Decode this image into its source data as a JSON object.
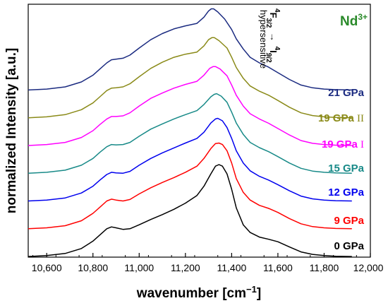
{
  "chart_data": {
    "type": "line",
    "title": "",
    "xlabel": "wavenumber [cm−1]",
    "xlabel_main": "wavenumber [cm",
    "xlabel_sup": "−1",
    "xlabel_close": "]",
    "ylabel": "normalized Intensity [a.u.]",
    "xlim": [
      10520,
      12000
    ],
    "x_ticks": [
      10600,
      10800,
      11000,
      11200,
      11400,
      11600,
      11800,
      12000
    ],
    "x_tick_labels": [
      "10,600",
      "10,800",
      "11,000",
      "11,200",
      "11,400",
      "11,600",
      "11,800",
      "12,000"
    ],
    "ylim": [
      0,
      8.2
    ],
    "y_ticks_labeled": false,
    "grid": false,
    "stacked_offset": 0.9,
    "annotations": {
      "ion": {
        "base": "Nd",
        "sup": "3+",
        "color": "#2a8a2a"
      },
      "transition": {
        "initial": "F",
        "initial_sup": "4",
        "initial_sub": "3/2",
        "arrow": "→",
        "final": "I",
        "final_sup": "4",
        "final_sub": "9/2"
      },
      "hypersensitive": "hypersensitive"
    },
    "series": [
      {
        "name": "0 GPa",
        "color": "#000000",
        "offset": 0,
        "points": [
          [
            10520,
            0.02
          ],
          [
            10600,
            0.05
          ],
          [
            10680,
            0.12
          ],
          [
            10750,
            0.28
          ],
          [
            10800,
            0.52
          ],
          [
            10830,
            0.72
          ],
          [
            10860,
            0.92
          ],
          [
            10880,
            0.98
          ],
          [
            10900,
            0.95
          ],
          [
            10930,
            0.9
          ],
          [
            10960,
            0.92
          ],
          [
            11000,
            1.05
          ],
          [
            11050,
            1.22
          ],
          [
            11100,
            1.38
          ],
          [
            11150,
            1.55
          ],
          [
            11200,
            1.75
          ],
          [
            11250,
            2.0
          ],
          [
            11280,
            2.3
          ],
          [
            11310,
            2.7
          ],
          [
            11330,
            2.95
          ],
          [
            11345,
            3.0
          ],
          [
            11360,
            2.95
          ],
          [
            11380,
            2.7
          ],
          [
            11400,
            2.2
          ],
          [
            11420,
            1.6
          ],
          [
            11450,
            1.05
          ],
          [
            11480,
            0.8
          ],
          [
            11520,
            0.65
          ],
          [
            11560,
            0.58
          ],
          [
            11600,
            0.5
          ],
          [
            11650,
            0.33
          ],
          [
            11700,
            0.17
          ],
          [
            11750,
            0.09
          ],
          [
            11800,
            0.05
          ],
          [
            11850,
            0.03
          ],
          [
            11920,
            0.02
          ]
        ]
      },
      {
        "name": "9 GPa",
        "color": "#ff0000",
        "offset": 0.9,
        "points": [
          [
            10520,
            0.02
          ],
          [
            10600,
            0.05
          ],
          [
            10680,
            0.12
          ],
          [
            10750,
            0.28
          ],
          [
            10800,
            0.52
          ],
          [
            10830,
            0.72
          ],
          [
            10860,
            0.92
          ],
          [
            10880,
            0.98
          ],
          [
            10900,
            0.95
          ],
          [
            10930,
            0.92
          ],
          [
            10960,
            0.97
          ],
          [
            11000,
            1.15
          ],
          [
            11050,
            1.35
          ],
          [
            11100,
            1.52
          ],
          [
            11150,
            1.68
          ],
          [
            11200,
            1.85
          ],
          [
            11250,
            2.05
          ],
          [
            11280,
            2.3
          ],
          [
            11310,
            2.62
          ],
          [
            11330,
            2.78
          ],
          [
            11345,
            2.8
          ],
          [
            11360,
            2.75
          ],
          [
            11380,
            2.55
          ],
          [
            11400,
            2.15
          ],
          [
            11420,
            1.65
          ],
          [
            11450,
            1.2
          ],
          [
            11480,
            0.95
          ],
          [
            11520,
            0.78
          ],
          [
            11560,
            0.68
          ],
          [
            11600,
            0.55
          ],
          [
            11650,
            0.35
          ],
          [
            11700,
            0.18
          ],
          [
            11750,
            0.09
          ],
          [
            11800,
            0.05
          ],
          [
            11850,
            0.03
          ],
          [
            11920,
            0.02
          ]
        ]
      },
      {
        "name": "12 GPa",
        "color": "#0000ee",
        "offset": 1.8,
        "points": [
          [
            10520,
            0.02
          ],
          [
            10600,
            0.05
          ],
          [
            10680,
            0.12
          ],
          [
            10750,
            0.28
          ],
          [
            10800,
            0.5
          ],
          [
            10830,
            0.7
          ],
          [
            10860,
            0.88
          ],
          [
            10880,
            0.95
          ],
          [
            10900,
            0.93
          ],
          [
            10930,
            0.92
          ],
          [
            10960,
            0.98
          ],
          [
            11000,
            1.18
          ],
          [
            11050,
            1.4
          ],
          [
            11100,
            1.58
          ],
          [
            11150,
            1.74
          ],
          [
            11200,
            1.9
          ],
          [
            11250,
            2.05
          ],
          [
            11280,
            2.25
          ],
          [
            11310,
            2.55
          ],
          [
            11330,
            2.68
          ],
          [
            11340,
            2.7
          ],
          [
            11360,
            2.62
          ],
          [
            11380,
            2.4
          ],
          [
            11400,
            2.05
          ],
          [
            11420,
            1.65
          ],
          [
            11450,
            1.25
          ],
          [
            11480,
            1.0
          ],
          [
            11520,
            0.82
          ],
          [
            11560,
            0.7
          ],
          [
            11600,
            0.55
          ],
          [
            11650,
            0.35
          ],
          [
            11700,
            0.18
          ],
          [
            11750,
            0.09
          ],
          [
            11800,
            0.05
          ],
          [
            11850,
            0.03
          ],
          [
            11920,
            0.02
          ]
        ]
      },
      {
        "name": "15 GPa",
        "color": "#188a88",
        "offset": 2.7,
        "points": [
          [
            10520,
            0.02
          ],
          [
            10600,
            0.05
          ],
          [
            10680,
            0.12
          ],
          [
            10750,
            0.28
          ],
          [
            10800,
            0.5
          ],
          [
            10830,
            0.7
          ],
          [
            10860,
            0.88
          ],
          [
            10880,
            0.95
          ],
          [
            10900,
            0.94
          ],
          [
            10930,
            0.95
          ],
          [
            10960,
            1.02
          ],
          [
            11000,
            1.22
          ],
          [
            11050,
            1.45
          ],
          [
            11100,
            1.62
          ],
          [
            11150,
            1.78
          ],
          [
            11200,
            1.92
          ],
          [
            11250,
            2.05
          ],
          [
            11280,
            2.25
          ],
          [
            11310,
            2.5
          ],
          [
            11325,
            2.58
          ],
          [
            11335,
            2.6
          ],
          [
            11355,
            2.52
          ],
          [
            11380,
            2.32
          ],
          [
            11400,
            2.0
          ],
          [
            11420,
            1.65
          ],
          [
            11450,
            1.28
          ],
          [
            11480,
            1.02
          ],
          [
            11520,
            0.85
          ],
          [
            11560,
            0.72
          ],
          [
            11600,
            0.56
          ],
          [
            11650,
            0.35
          ],
          [
            11700,
            0.18
          ],
          [
            11750,
            0.09
          ],
          [
            11800,
            0.05
          ],
          [
            11850,
            0.03
          ],
          [
            11920,
            0.02
          ]
        ]
      },
      {
        "name": "19 GPa I",
        "color": "#ff00ff",
        "offset": 3.6,
        "points": [
          [
            10520,
            0.02
          ],
          [
            10600,
            0.05
          ],
          [
            10680,
            0.12
          ],
          [
            10750,
            0.28
          ],
          [
            10800,
            0.5
          ],
          [
            10830,
            0.7
          ],
          [
            10860,
            0.88
          ],
          [
            10880,
            0.96
          ],
          [
            10900,
            0.96
          ],
          [
            10930,
            0.98
          ],
          [
            10960,
            1.08
          ],
          [
            11000,
            1.3
          ],
          [
            11050,
            1.55
          ],
          [
            11100,
            1.72
          ],
          [
            11150,
            1.88
          ],
          [
            11200,
            2.0
          ],
          [
            11250,
            2.1
          ],
          [
            11280,
            2.3
          ],
          [
            11305,
            2.52
          ],
          [
            11320,
            2.58
          ],
          [
            11330,
            2.58
          ],
          [
            11350,
            2.5
          ],
          [
            11380,
            2.28
          ],
          [
            11400,
            1.98
          ],
          [
            11420,
            1.65
          ],
          [
            11450,
            1.3
          ],
          [
            11480,
            1.05
          ],
          [
            11520,
            0.88
          ],
          [
            11560,
            0.74
          ],
          [
            11600,
            0.57
          ],
          [
            11650,
            0.36
          ],
          [
            11700,
            0.18
          ],
          [
            11750,
            0.09
          ],
          [
            11800,
            0.05
          ],
          [
            11850,
            0.03
          ],
          [
            11920,
            0.02
          ]
        ]
      },
      {
        "name": "19 GPa II",
        "color": "#8a8a18",
        "offset": 4.5,
        "points": [
          [
            10520,
            0.02
          ],
          [
            10600,
            0.05
          ],
          [
            10680,
            0.12
          ],
          [
            10750,
            0.28
          ],
          [
            10800,
            0.5
          ],
          [
            10830,
            0.7
          ],
          [
            10860,
            0.9
          ],
          [
            10880,
            0.98
          ],
          [
            10900,
            0.99
          ],
          [
            10930,
            1.02
          ],
          [
            10960,
            1.12
          ],
          [
            11000,
            1.35
          ],
          [
            11050,
            1.62
          ],
          [
            11100,
            1.82
          ],
          [
            11150,
            1.98
          ],
          [
            11200,
            2.08
          ],
          [
            11250,
            2.15
          ],
          [
            11280,
            2.35
          ],
          [
            11300,
            2.55
          ],
          [
            11315,
            2.62
          ],
          [
            11325,
            2.62
          ],
          [
            11345,
            2.52
          ],
          [
            11380,
            2.28
          ],
          [
            11400,
            1.98
          ],
          [
            11420,
            1.65
          ],
          [
            11450,
            1.3
          ],
          [
            11480,
            1.05
          ],
          [
            11520,
            0.88
          ],
          [
            11560,
            0.75
          ],
          [
            11600,
            0.58
          ],
          [
            11650,
            0.36
          ],
          [
            11700,
            0.18
          ],
          [
            11750,
            0.09
          ],
          [
            11800,
            0.05
          ],
          [
            11850,
            0.03
          ],
          [
            11920,
            0.02
          ]
        ]
      },
      {
        "name": "21 GPa",
        "color": "#1a2a80",
        "offset": 5.4,
        "points": [
          [
            10520,
            0.02
          ],
          [
            10600,
            0.05
          ],
          [
            10680,
            0.12
          ],
          [
            10750,
            0.28
          ],
          [
            10800,
            0.5
          ],
          [
            10830,
            0.7
          ],
          [
            10860,
            0.9
          ],
          [
            10880,
            1.0
          ],
          [
            10900,
            1.02
          ],
          [
            10930,
            1.05
          ],
          [
            10960,
            1.15
          ],
          [
            11000,
            1.38
          ],
          [
            11050,
            1.65
          ],
          [
            11100,
            1.85
          ],
          [
            11150,
            2.0
          ],
          [
            11200,
            2.1
          ],
          [
            11250,
            2.18
          ],
          [
            11280,
            2.38
          ],
          [
            11300,
            2.58
          ],
          [
            11312,
            2.65
          ],
          [
            11322,
            2.65
          ],
          [
            11340,
            2.55
          ],
          [
            11370,
            2.32
          ],
          [
            11400,
            1.98
          ],
          [
            11420,
            1.68
          ],
          [
            11450,
            1.35
          ],
          [
            11480,
            1.08
          ],
          [
            11520,
            0.9
          ],
          [
            11560,
            0.76
          ],
          [
            11600,
            0.58
          ],
          [
            11650,
            0.36
          ],
          [
            11700,
            0.18
          ],
          [
            11750,
            0.09
          ],
          [
            11800,
            0.05
          ],
          [
            11850,
            0.03
          ],
          [
            11920,
            0.02
          ]
        ]
      }
    ],
    "legend": {
      "placement": "right-inline",
      "entries": [
        {
          "text": "21 GPa",
          "roman": "",
          "color": "#1a2a80"
        },
        {
          "text": "19 GPa ",
          "roman": "II",
          "color": "#8a8a18"
        },
        {
          "text": "19 GPa ",
          "roman": "I",
          "color": "#ff00ff"
        },
        {
          "text": "15 GPa",
          "roman": "",
          "color": "#188a88"
        },
        {
          "text": "12 GPa",
          "roman": "",
          "color": "#0000ee"
        },
        {
          "text": "9 GPa",
          "roman": "",
          "color": "#ff0000"
        },
        {
          "text": "0 GPa",
          "roman": "",
          "color": "#000000"
        }
      ]
    }
  }
}
